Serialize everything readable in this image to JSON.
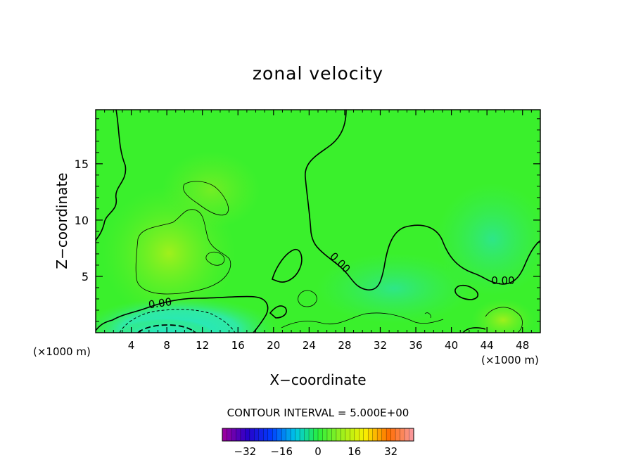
{
  "chart_data": {
    "type": "heatmap",
    "title": "zonal velocity",
    "xlabel": "X−coordinate",
    "ylabel": "Z−coordinate",
    "xlim": [
      0,
      50
    ],
    "ylim": [
      0,
      19.8
    ],
    "x_ticks": [
      4,
      8,
      12,
      16,
      20,
      24,
      28,
      32,
      36,
      40,
      44,
      48
    ],
    "y_ticks": [
      5,
      10,
      15
    ],
    "x_unit_left": "(×1000 m)",
    "x_unit_right": "(×1000 m)",
    "contour_interval_text": "CONTOUR INTERVAL = 5.000E+00",
    "contour_labels": [
      {
        "text": "0.00",
        "x": 7.3,
        "z": 2.3
      },
      {
        "text": "0.00",
        "x": 27.2,
        "z": 6.0
      },
      {
        "text": "0.00",
        "x": 45.8,
        "z": 4.3
      }
    ],
    "colorbar": {
      "range": [
        -42,
        42
      ],
      "ticks": [
        -32,
        -16,
        0,
        16,
        32
      ]
    },
    "colors": {
      "field": "#3af02c",
      "negative_region": "#2ee8b4",
      "positive_region": "#88ee22",
      "contour": "#000000"
    }
  }
}
